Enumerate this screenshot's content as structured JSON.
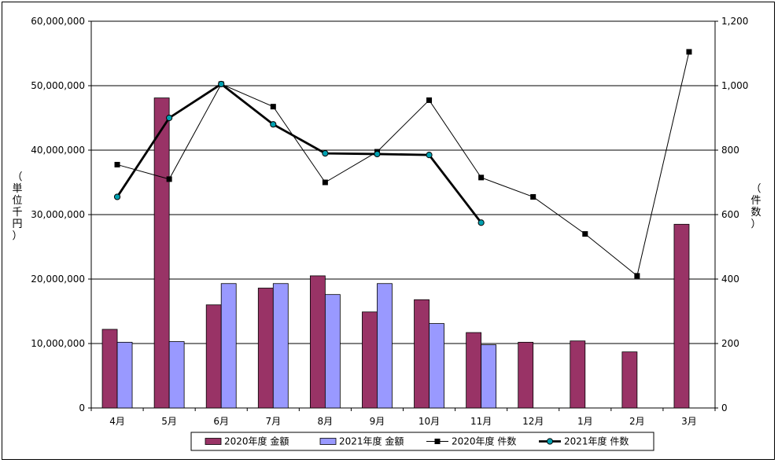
{
  "chart_data": {
    "type": "bar",
    "categories": [
      "4月",
      "5月",
      "6月",
      "7月",
      "8月",
      "9月",
      "10月",
      "11月",
      "12月",
      "1月",
      "2月",
      "3月"
    ],
    "ylabel": "（単位千円）",
    "ylabel_chars": [
      "（",
      "単",
      "位",
      "千",
      "円",
      "）"
    ],
    "y2label": "（件数）",
    "y2label_chars": [
      "（",
      "件",
      "数",
      "）"
    ],
    "ylim": [
      0,
      60000000
    ],
    "y2lim": [
      0,
      1200
    ],
    "yticks": [
      "0",
      "10,000,000",
      "20,000,000",
      "30,000,000",
      "40,000,000",
      "50,000,000",
      "60,000,000"
    ],
    "y2ticks": [
      "0",
      "200",
      "400",
      "600",
      "800",
      "1,000",
      "1,200"
    ],
    "grid": true,
    "legend_position": "bottom",
    "series": [
      {
        "name": "2020年度 金額",
        "kind": "bar",
        "axis": "left",
        "color": "#993366",
        "values": [
          12200000,
          48100000,
          16000000,
          18600000,
          20500000,
          14900000,
          16800000,
          11700000,
          10200000,
          10400000,
          8700000,
          28500000
        ]
      },
      {
        "name": "2021年度 金額",
        "kind": "bar",
        "axis": "left",
        "color": "#9999ff",
        "values": [
          10200000,
          10300000,
          19300000,
          19300000,
          17600000,
          19300000,
          13100000,
          9800000,
          null,
          null,
          null,
          null
        ]
      },
      {
        "name": "2020年度 件数",
        "kind": "line",
        "axis": "right",
        "color": "#000000",
        "marker": "square",
        "values": [
          755,
          710,
          1005,
          935,
          700,
          795,
          955,
          715,
          655,
          540,
          410,
          1105
        ]
      },
      {
        "name": "2021年度 件数",
        "kind": "line",
        "axis": "right",
        "color": "#000000",
        "marker": "circle",
        "marker_fill": "#00a0b0",
        "values": [
          655,
          900,
          1005,
          880,
          790,
          788,
          785,
          575,
          null,
          null,
          null,
          null
        ]
      }
    ]
  }
}
